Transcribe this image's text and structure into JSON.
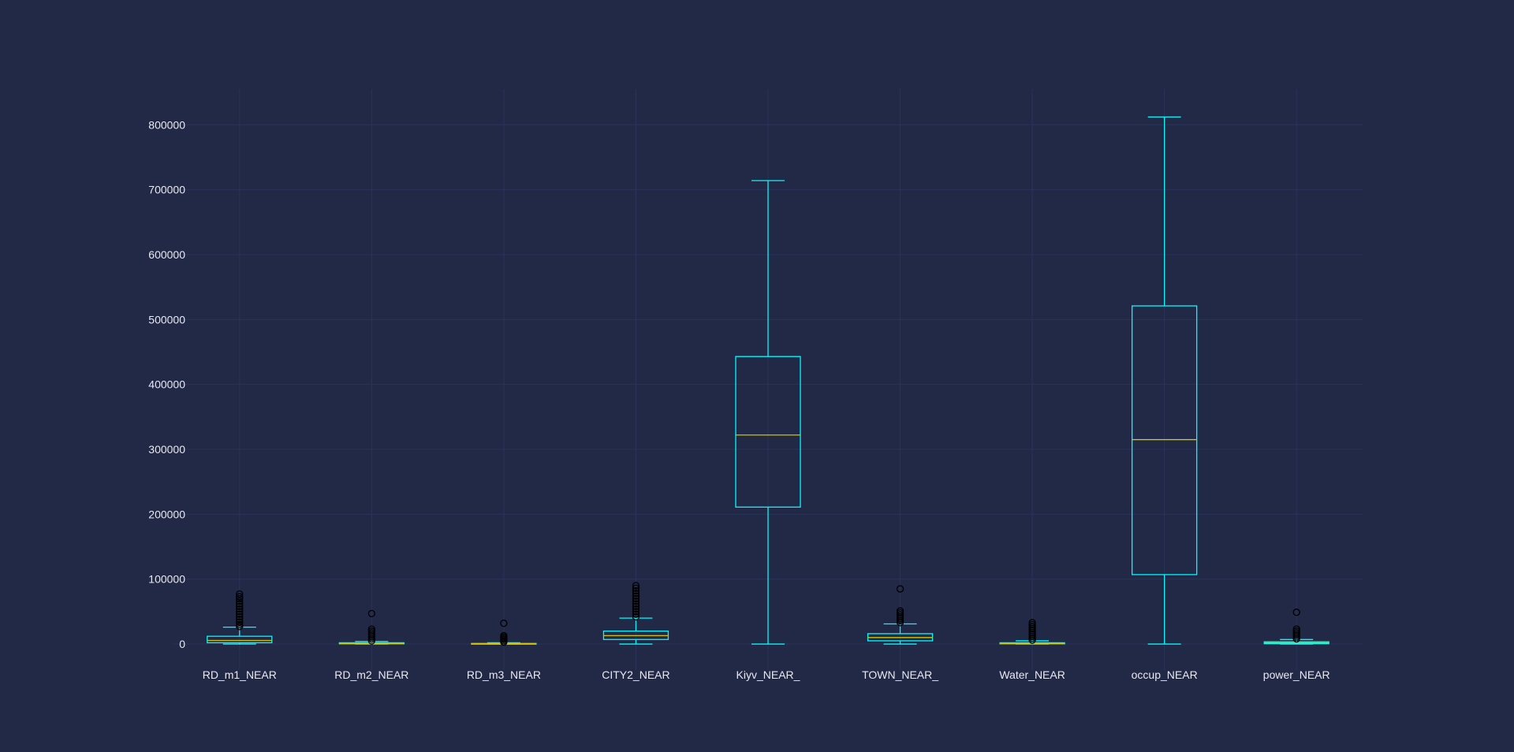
{
  "colors": {
    "background": "#212946",
    "grid": "#2a3459",
    "box": "#08f7fe",
    "median": "#d4c300",
    "flier": "#000000",
    "text": "#e8e8f0"
  },
  "chart_data": {
    "type": "box",
    "title": "",
    "xlabel": "",
    "ylabel": "",
    "ylim": [
      -40000,
      855000
    ],
    "grid": true,
    "y_ticks": [
      0,
      100000,
      200000,
      300000,
      400000,
      500000,
      600000,
      700000,
      800000
    ],
    "y_tick_labels": [
      "0",
      "100000",
      "200000",
      "300000",
      "400000",
      "500000",
      "600000",
      "700000",
      "800000"
    ],
    "categories": [
      "RD_m1_NEAR",
      "RD_m2_NEAR",
      "RD_m3_NEAR",
      "CITY2_NEAR",
      "Kiyv_NEAR_",
      "TOWN_NEAR_",
      "Water_NEAR",
      "occup_NEAR",
      "power_NEAR"
    ],
    "boxes": [
      {
        "whislo": 0,
        "q1": 2000,
        "med": 5500,
        "q3": 12000,
        "whishi": 26000,
        "fliers": [
          27000,
          30000,
          34000,
          38000,
          42000,
          46000,
          50000,
          54000,
          58000,
          62000,
          66000,
          70000,
          73000,
          77000
        ]
      },
      {
        "whislo": 0,
        "q1": 300,
        "med": 1000,
        "q3": 2000,
        "whishi": 4000,
        "fliers": [
          5000,
          8000,
          11000,
          14000,
          17000,
          20000,
          23000,
          47000
        ]
      },
      {
        "whislo": 0,
        "q1": 100,
        "med": 500,
        "q3": 1000,
        "whishi": 2000,
        "fliers": [
          3000,
          5000,
          7000,
          9000,
          11000,
          13000,
          32000
        ]
      },
      {
        "whislo": 0,
        "q1": 7000,
        "med": 13000,
        "q3": 20000,
        "whishi": 40000,
        "fliers": [
          42000,
          46000,
          50000,
          54000,
          58000,
          62000,
          66000,
          70000,
          74000,
          78000,
          82000,
          86000,
          90000
        ]
      },
      {
        "whislo": 0,
        "q1": 211000,
        "med": 322000,
        "q3": 443000,
        "whishi": 714000,
        "fliers": []
      },
      {
        "whislo": 0,
        "q1": 5000,
        "med": 10000,
        "q3": 16000,
        "whishi": 31000,
        "fliers": [
          33000,
          36000,
          39000,
          42000,
          45000,
          48000,
          51000,
          85000
        ]
      },
      {
        "whislo": 0,
        "q1": 300,
        "med": 1000,
        "q3": 2000,
        "whishi": 5000,
        "fliers": [
          6000,
          9000,
          12000,
          15000,
          18000,
          21000,
          24000,
          27000,
          30000,
          33000
        ]
      },
      {
        "whislo": 0,
        "q1": 107000,
        "med": 315000,
        "q3": 521000,
        "whishi": 812000,
        "fliers": []
      },
      {
        "whislo": 0,
        "q1": 500,
        "med": 2000,
        "q3": 3500,
        "whishi": 7000,
        "fliers": [
          8000,
          11000,
          14000,
          17000,
          20000,
          23000,
          49000
        ]
      }
    ]
  }
}
